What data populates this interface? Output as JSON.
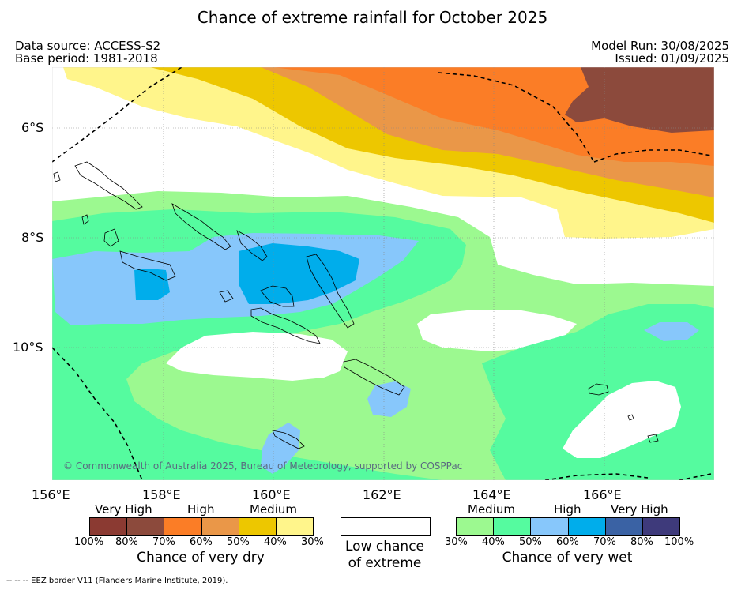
{
  "title": "Chance of extreme rainfall for October 2025",
  "meta": {
    "data_source": "Data source: ACCESS-S2",
    "base_period": "Base period: 1981-2018",
    "model_run": "Model Run: 30/08/2025",
    "issued": "Issued: 01/09/2025"
  },
  "map": {
    "lat_labels": [
      "6°S",
      "8°S",
      "10°S"
    ],
    "lon_labels": [
      "156°E",
      "158°E",
      "160°E",
      "162°E",
      "164°E",
      "166°E"
    ],
    "copyright": "© Commonwealth of Australia 2025, Bureau of Meteorology, supported by COSPPac"
  },
  "legend": {
    "dry": {
      "group_labels": [
        "Very High",
        "High",
        "Medium"
      ],
      "tick_labels": [
        "100%",
        "80%",
        "70%",
        "60%",
        "50%",
        "40%",
        "30%"
      ],
      "title": "Chance of very dry",
      "colors": [
        "#8b3a32",
        "#8c4a3c",
        "#fb7d26",
        "#ea9748",
        "#edc700",
        "#fff58b"
      ]
    },
    "low": {
      "title_line1": "Low chance",
      "title_line2": "of extreme",
      "color": "#ffffff"
    },
    "wet": {
      "group_labels": [
        "Medium",
        "High",
        "Very High"
      ],
      "tick_labels": [
        "30%",
        "40%",
        "50%",
        "60%",
        "70%",
        "80%",
        "100%"
      ],
      "title": "Chance of very wet",
      "colors": [
        "#9cf990",
        "#55fb9f",
        "#87c7fb",
        "#00adeb",
        "#3a62a4",
        "#3e3a7b"
      ]
    }
  },
  "footnote": "--  --  -- EEZ border V11 (Flanders Marine Institute, 2019)."
}
